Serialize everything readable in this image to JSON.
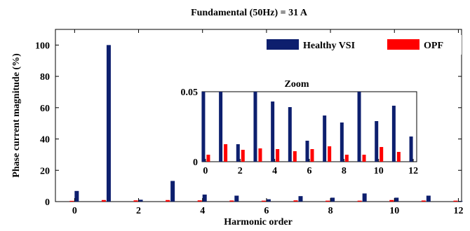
{
  "chart_data": {
    "type": "bar",
    "title": "Fundamental (50Hz) = 31 A",
    "xlabel": "Harmonic order",
    "ylabel": "Phase current magnitude (%)",
    "xlim": [
      -0.6,
      12.1
    ],
    "ylim": [
      0,
      110
    ],
    "xticks": [
      "0",
      "2",
      "4",
      "6",
      "8",
      "10",
      "12"
    ],
    "yticks": [
      "0",
      "20",
      "40",
      "60",
      "80",
      "100"
    ],
    "grid": false,
    "legend_position": "top-right",
    "x": [
      0,
      1,
      2,
      3,
      4,
      5,
      6,
      7,
      8,
      9,
      10,
      11,
      12
    ],
    "series": [
      {
        "name": "Healthy VSI",
        "color": "#0d1f6e",
        "values": [
          6.8,
          100,
          1.2,
          13.2,
          4.5,
          3.8,
          1.5,
          3.5,
          2.5,
          5.2,
          2.5,
          3.8,
          0.4
        ]
      },
      {
        "name": "OPF",
        "color": "#ff0000",
        "values": [
          0.5,
          1.0,
          0.8,
          1.0,
          0.8,
          0.7,
          0.6,
          0.8,
          0.6,
          0.6,
          1.0,
          0.7,
          0.6
        ]
      }
    ],
    "inset": {
      "title": "Zoom",
      "xlim": [
        -0.2,
        12.2
      ],
      "ylim": [
        0,
        0.05
      ],
      "xticks": [
        "0",
        "2",
        "4",
        "6",
        "8",
        "10",
        "12"
      ],
      "yticks": [
        "0",
        "0.05"
      ],
      "series": [
        {
          "name": "Healthy VSI",
          "values": [
            0.05,
            0.05,
            0.0125,
            0.05,
            0.043,
            0.039,
            0.015,
            0.033,
            0.028,
            0.05,
            0.029,
            0.04,
            0.018
          ]
        },
        {
          "name": "OPF",
          "values": [
            0.005,
            0.0125,
            0.0085,
            0.0095,
            0.009,
            0.0075,
            0.009,
            0.011,
            0.005,
            0.005,
            0.0105,
            0.007,
            0
          ]
        }
      ]
    }
  }
}
